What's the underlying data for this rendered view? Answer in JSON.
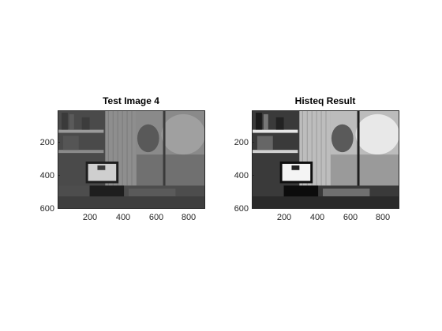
{
  "figure": {
    "panels": [
      {
        "title": "Test Image 4",
        "variant": "original",
        "yticks": [
          "200",
          "400",
          "600"
        ],
        "xticks": [
          "200",
          "400",
          "600",
          "800"
        ]
      },
      {
        "title": "Histeq Result",
        "variant": "equalized",
        "yticks": [
          "200",
          "400",
          "600"
        ],
        "xticks": [
          "200",
          "400",
          "600",
          "800"
        ]
      }
    ]
  }
}
